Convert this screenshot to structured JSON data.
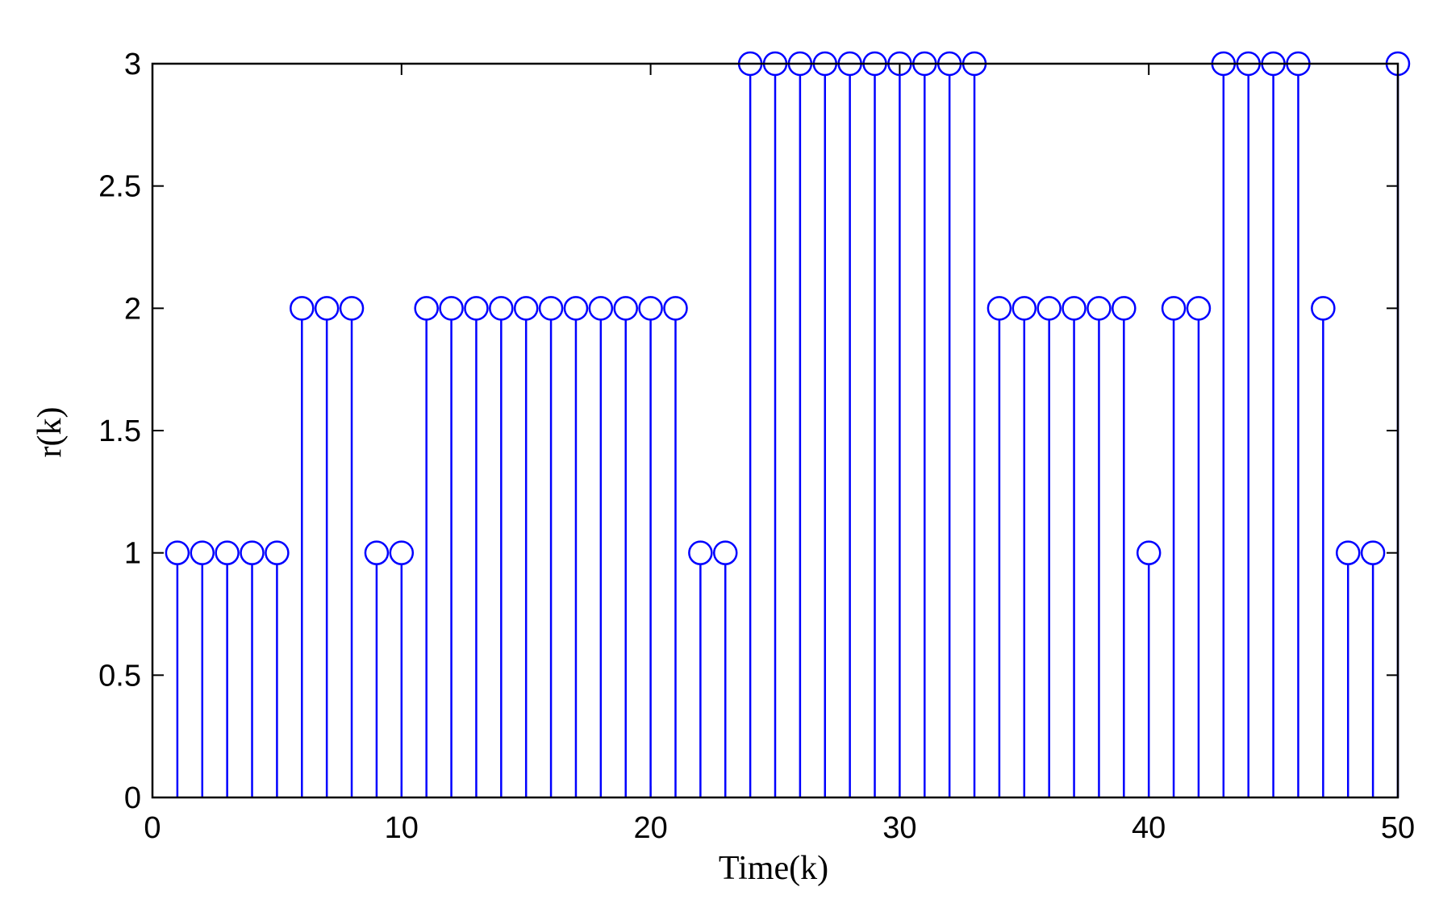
{
  "chart_data": {
    "type": "stem",
    "xlabel": "Time(k)",
    "ylabel": "r(k)",
    "xlim": [
      0,
      50
    ],
    "ylim": [
      0,
      3
    ],
    "xticks": [
      0,
      10,
      20,
      30,
      40,
      50
    ],
    "yticks": [
      0,
      0.5,
      1,
      1.5,
      2,
      2.5,
      3
    ],
    "xtick_labels": [
      "0",
      "10",
      "20",
      "30",
      "40",
      "50"
    ],
    "ytick_labels": [
      "0",
      "0.5",
      "1",
      "1.5",
      "2",
      "2.5",
      "3"
    ],
    "grid": false,
    "color": "#0000ff",
    "marker": "open-circle",
    "x": [
      1,
      2,
      3,
      4,
      5,
      6,
      7,
      8,
      9,
      10,
      11,
      12,
      13,
      14,
      15,
      16,
      17,
      18,
      19,
      20,
      21,
      22,
      23,
      24,
      25,
      26,
      27,
      28,
      29,
      30,
      31,
      32,
      33,
      34,
      35,
      36,
      37,
      38,
      39,
      40,
      41,
      42,
      43,
      44,
      45,
      46,
      47,
      48,
      49,
      50
    ],
    "y": [
      1,
      1,
      1,
      1,
      1,
      2,
      2,
      2,
      1,
      1,
      2,
      2,
      2,
      2,
      2,
      2,
      2,
      2,
      2,
      2,
      2,
      1,
      1,
      3,
      3,
      3,
      3,
      3,
      3,
      3,
      3,
      3,
      3,
      2,
      2,
      2,
      2,
      2,
      2,
      1,
      2,
      2,
      3,
      3,
      3,
      3,
      2,
      1,
      1,
      3
    ]
  }
}
